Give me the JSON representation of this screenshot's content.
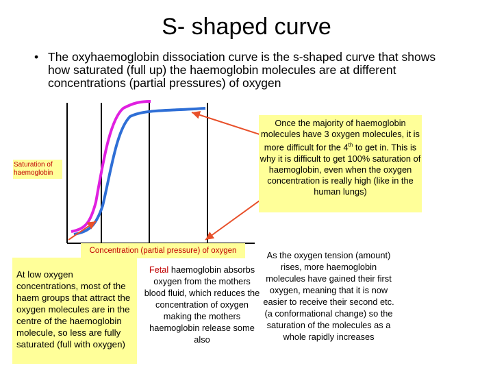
{
  "header": {
    "title": "S- shaped curve"
  },
  "bullet": "The oxyhaemoglobin dissociation curve is the s-shaped curve that shows how saturated (full up) the haemoglobin molecules are at different concentrations (partial pressures) of oxygen",
  "diagram": {
    "y_label": "Saturation of haemoglobin",
    "x_label": "Concentration (partial pressure) of oxygen"
  },
  "notes": {
    "plateau": [
      "Once the majority of haemoglobin molecules have 3 oxygen molecules, it is more difficult for the 4",
      "th",
      " to get in. This is why it is difficult to get 100% saturation of haemoglobin, even when the oxygen concentration is really high (like in the human lungs)"
    ],
    "low": "At low oxygen concentrations, most of the haem groups that attract the oxygen molecules are in the centre of the haemoglobin molecule, so less are fully saturated (full with oxygen)",
    "fetal": [
      "Fetal",
      " haemoglobin absorbs oxygen from the mothers blood fluid, which reduces the concentration of oxygen making the mothers haemoglobin release some also"
    ],
    "rise": "As the oxygen tension (amount) rises, more haemoglobin molecules have gained their first oxygen, meaning that it is now easier to receive their second etc. (a conformational change) so the saturation of the molecules as a whole rapidly increases"
  }
}
